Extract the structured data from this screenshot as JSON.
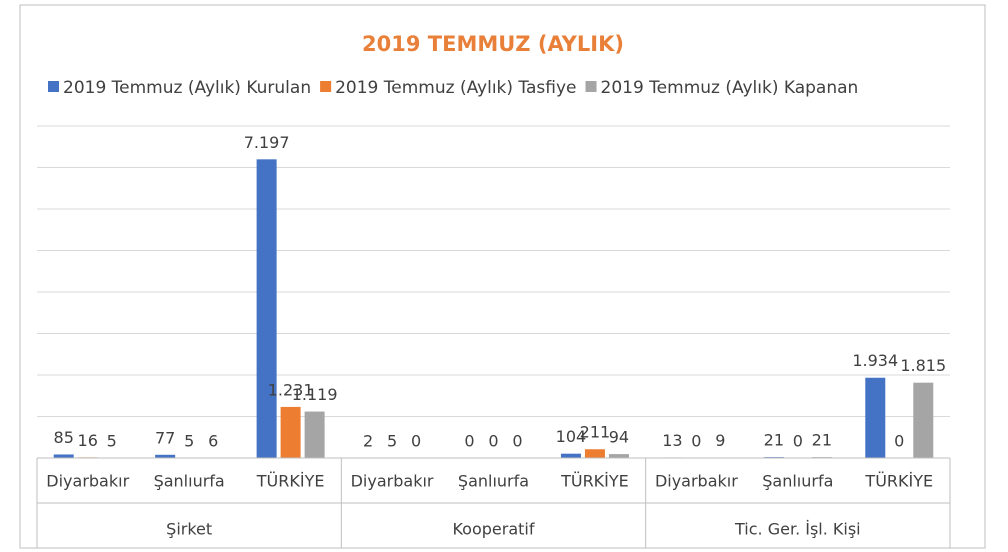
{
  "chart_data": {
    "type": "bar",
    "title": "2019 TEMMUZ (AYLIK)",
    "groups": [
      "Şirket",
      "Kooperatif",
      "Tic. Ger. İşl. Kişi"
    ],
    "categories": [
      "Diyarbakır",
      "Şanlıurfa",
      "TÜRKİYE",
      "Diyarbakır",
      "Şanlıurfa",
      "TÜRKİYE",
      "Diyarbakır",
      "Şanlıurfa",
      "TÜRKİYE"
    ],
    "series": [
      {
        "name": "2019 Temmuz (Aylık) Kurulan",
        "color": "#4472c4",
        "values": [
          85,
          77,
          7197,
          2,
          0,
          104,
          13,
          21,
          1934
        ],
        "value_labels": [
          "85",
          "77",
          "7.197",
          "2",
          "0",
          "104",
          "13",
          "21",
          "1.934"
        ]
      },
      {
        "name": "2019 Temmuz (Aylık) Tasfiye",
        "color": "#ed7d31",
        "values": [
          16,
          5,
          1231,
          5,
          0,
          211,
          0,
          0,
          0
        ],
        "value_labels": [
          "16",
          "5",
          "1.231",
          "5",
          "0",
          "211",
          "0",
          "0",
          "0"
        ]
      },
      {
        "name": "2019 Temmuz (Aylık) Kapanan",
        "color": "#a5a5a5",
        "values": [
          5,
          6,
          1119,
          0,
          0,
          94,
          9,
          21,
          1815
        ],
        "value_labels": [
          "5",
          "6",
          "1.119",
          "0",
          "0",
          "94",
          "9",
          "21",
          "1.815"
        ]
      }
    ],
    "ylim": [
      0,
      8000
    ],
    "yticks": [
      0,
      1000,
      2000,
      3000,
      4000,
      5000,
      6000,
      7000,
      8000
    ],
    "grid": true,
    "legend": "top"
  }
}
